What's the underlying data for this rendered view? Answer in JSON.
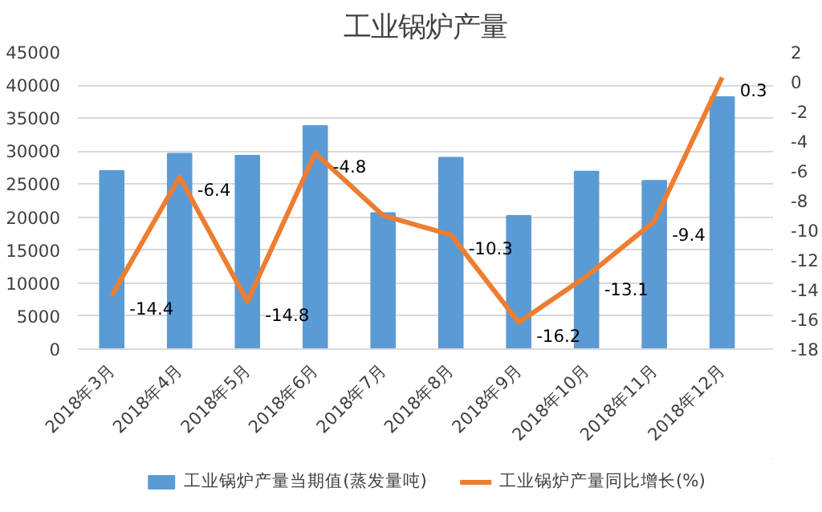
{
  "chart_data": {
    "type": "bar",
    "title": "工业锅炉产量",
    "categories": [
      "2018年3月",
      "2018年4月",
      "2018年5月",
      "2018年6月",
      "2018年7月",
      "2018年8月",
      "2018年9月",
      "2018年10月",
      "2018年11月",
      "2018年12月"
    ],
    "series": [
      {
        "name": "工业锅炉产量当期值(蒸发量吨)",
        "color": "#5b9bd5",
        "values": [
          27000,
          29600,
          29300,
          33800,
          20600,
          29000,
          20200,
          26900,
          25500,
          38200
        ]
      },
      {
        "name": "工业锅炉产量同比增长(%)",
        "type": "line",
        "axis": "y2",
        "color": "#ed7d31",
        "values": [
          -14.4,
          -6.4,
          -14.8,
          -4.8,
          -9.0,
          -10.3,
          -16.2,
          -13.1,
          -9.4,
          0.3
        ],
        "value_labels": [
          "-14.4",
          "-6.4",
          "-14.8",
          "-4.8",
          null,
          "-10.3",
          "-16.2",
          "-13.1",
          "-9.4",
          "0.3"
        ]
      }
    ],
    "ylim": [
      0,
      45000
    ],
    "yticks": [
      0,
      5000,
      10000,
      15000,
      20000,
      25000,
      30000,
      35000,
      40000,
      45000
    ],
    "y2lim": [
      -18,
      2
    ],
    "y2ticks": [
      -18,
      -16,
      -14,
      -12,
      -10,
      -8,
      -6,
      -4,
      -2,
      0,
      2
    ],
    "grid": "y",
    "legend": "bottom"
  }
}
